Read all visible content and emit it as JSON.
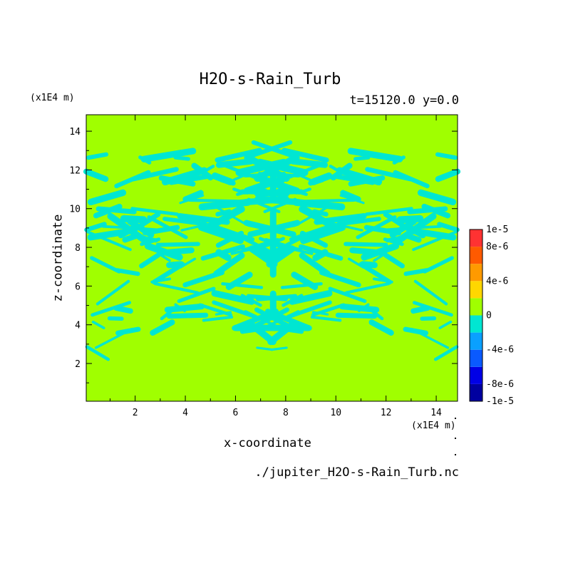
{
  "chart_data": {
    "type": "heatmap",
    "title": "H2O-s-Rain_Turb",
    "time_info": "t=15120.0 y=0.0",
    "xlabel": "x-coordinate",
    "ylabel": "z-coordinate",
    "x_unit": "(x1E4 m)",
    "y_unit": "(x1E4 m)",
    "file_name": "./jupiter_H2O-s-Rain_Turb.nc",
    "xlim": [
      0.05,
      14.85
    ],
    "ylim": [
      0.05,
      14.85
    ],
    "x_ticks": [
      2,
      4,
      6,
      8,
      10,
      12,
      14
    ],
    "y_ticks": [
      2,
      4,
      6,
      8,
      10,
      12,
      14
    ],
    "grid": false,
    "colorbar": {
      "levels": [
        "-1e-5",
        "-8e-6",
        "-6e-6",
        "-4e-6",
        "-2e-6",
        "0",
        "2e-6",
        "4e-6",
        "6e-6",
        "8e-6",
        "1e-5"
      ],
      "labels": [
        "1e-5",
        "8e-6",
        "4e-6",
        "0",
        "-4e-6",
        "-8e-6",
        "-1e-5"
      ],
      "colors": [
        "#0000a0",
        "#0000e6",
        "#0a5aff",
        "#0aa0ff",
        "#00e6d2",
        "#a0ff00",
        "#ffd700",
        "#ff9a00",
        "#ff5a00",
        "#ff3232"
      ]
    },
    "field_summary": {
      "background_level": "0",
      "background_color": "#a0ff00",
      "feature_color": "#00e6d2",
      "feature_z_range": [
        2.5,
        13.0
      ]
    }
  }
}
